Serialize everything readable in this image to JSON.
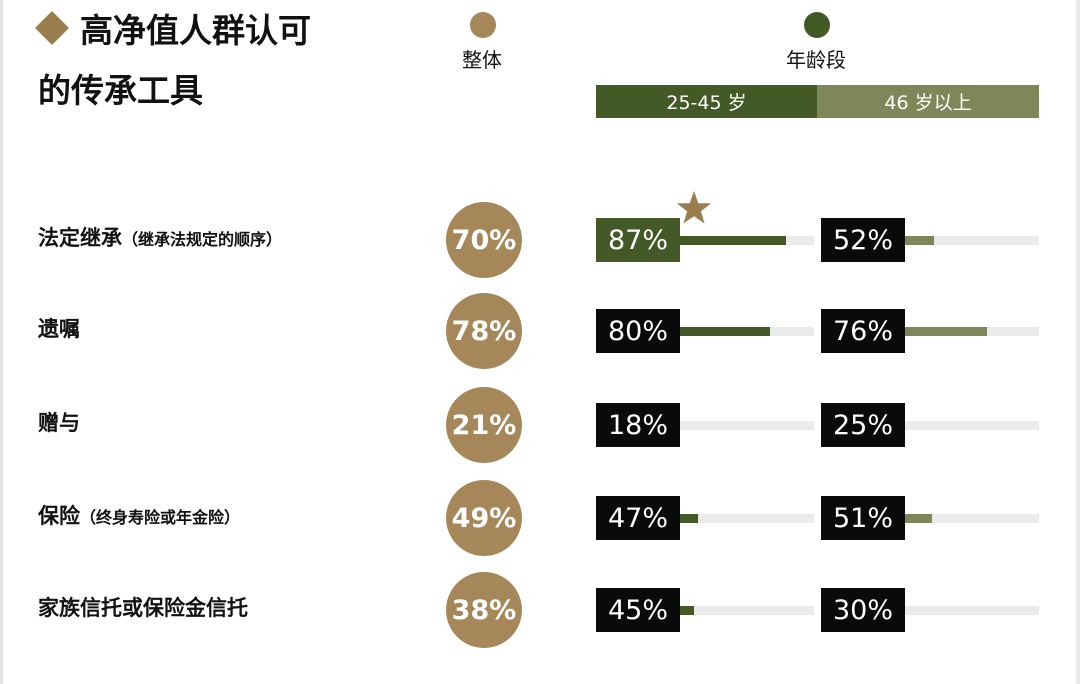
{
  "title": {
    "line1": "高净值人群认可",
    "line2": "的传承工具"
  },
  "legend": {
    "overall": {
      "label": "整体",
      "color": "#a6875a"
    },
    "age_group": {
      "label": "年龄段",
      "color": "#435a26"
    }
  },
  "age_bands": [
    {
      "label": "25-45 岁",
      "color": "#435a26"
    },
    {
      "label": "46 岁以上",
      "color": "#7f8659"
    }
  ],
  "colors": {
    "young_fill": "#435a26",
    "old_fill": "#7f8659",
    "highlight_box": "#435a26",
    "star": "#9a7d4d",
    "track": "#ebebeb"
  },
  "chart_data": {
    "type": "bar",
    "title": "高净值人群认可的传承工具",
    "unit": "%",
    "xlim": [
      0,
      100
    ],
    "categories": [
      "法定继承",
      "遗嘱",
      "赠与",
      "保险",
      "家族信托或保险金信托"
    ],
    "category_notes": [
      "（继承法规定的顺序）",
      "",
      "",
      "（终身寿险或年金险）",
      ""
    ],
    "series": [
      {
        "name": "整体",
        "values": [
          70,
          78,
          21,
          49,
          38
        ]
      },
      {
        "name": "25-45 岁",
        "values": [
          87,
          80,
          18,
          47,
          45
        ]
      },
      {
        "name": "46 岁以上",
        "values": [
          52,
          76,
          25,
          51,
          30
        ]
      }
    ],
    "value_labels": {
      "overall": [
        "70%",
        "78%",
        "21%",
        "49%",
        "38%"
      ],
      "young": [
        "87%",
        "80%",
        "18%",
        "47%",
        "45%"
      ],
      "old": [
        "52%",
        "76%",
        "25%",
        "51%",
        "30%"
      ]
    },
    "highlight": {
      "series": "25-45 岁",
      "category": "法定继承",
      "marker": "star-icon"
    }
  }
}
